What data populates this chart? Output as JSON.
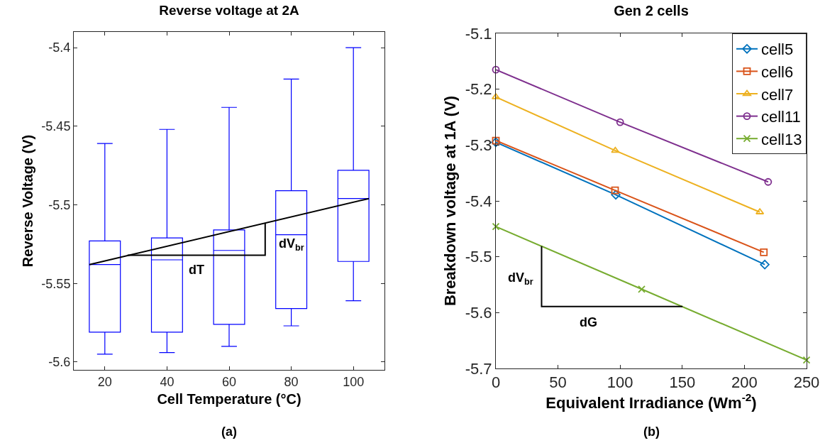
{
  "chart_data": [
    {
      "type": "box",
      "title": "Reverse voltage at 2A",
      "xlabel": "Cell Temperature (°C)",
      "ylabel": "Reverse Voltage (V)",
      "x": [
        20,
        40,
        60,
        80,
        100
      ],
      "xlim": [
        10,
        110
      ],
      "xticks": [
        20,
        40,
        60,
        80,
        100
      ],
      "ylim": [
        -5.605,
        -5.39
      ],
      "yticks": [
        -5.6,
        -5.55,
        -5.5,
        -5.45,
        -5.4
      ],
      "series": [
        {
          "type": "box",
          "color": "#0000ff",
          "boxes": [
            {
              "low": -5.595,
              "q1": -5.581,
              "median": -5.538,
              "q3": -5.523,
              "high": -5.461
            },
            {
              "low": -5.594,
              "q1": -5.581,
              "median": -5.535,
              "q3": -5.521,
              "high": -5.452
            },
            {
              "low": -5.59,
              "q1": -5.576,
              "median": -5.529,
              "q3": -5.516,
              "high": -5.438
            },
            {
              "low": -5.577,
              "q1": -5.566,
              "median": -5.519,
              "q3": -5.491,
              "high": -5.42
            },
            {
              "low": -5.561,
              "q1": -5.536,
              "median": -5.496,
              "q3": -5.478,
              "high": -5.4
            }
          ]
        },
        {
          "type": "line",
          "color": "#000000",
          "x": [
            15,
            105
          ],
          "values": [
            -5.538,
            -5.496
          ]
        },
        {
          "type": "line",
          "color": "#000000",
          "x": [
            27.3,
            71.6,
            71.6
          ],
          "values": [
            -5.532,
            -5.532,
            -5.512
          ]
        }
      ],
      "marker": "none",
      "line_style": "solid",
      "grid": false,
      "annotations": [
        "dT",
        "dV$_{br}$",
        "(a)"
      ]
    },
    {
      "type": "line",
      "title": "Gen 2 cells",
      "xlabel": "Equivalent Irradiance (Wm$^{-2}$)",
      "ylabel": "Breakdown voltage at 1A (V)",
      "xlim": [
        0,
        250
      ],
      "xticks": [
        0,
        50,
        100,
        150,
        200,
        250
      ],
      "ylim": [
        -5.7,
        -5.1
      ],
      "yticks": [
        -5.7,
        -5.6,
        -5.5,
        -5.4,
        -5.3,
        -5.2,
        -5.1
      ],
      "series": [
        {
          "name": "cell5",
          "color": "#0072bd",
          "marker": "diamond",
          "x": [
            0,
            96.5,
            216.4
          ],
          "values": [
            -5.295,
            -5.389,
            -5.514
          ]
        },
        {
          "name": "cell6",
          "color": "#d95319",
          "marker": "square",
          "x": [
            0,
            95.9,
            215.6
          ],
          "values": [
            -5.292,
            -5.381,
            -5.492
          ]
        },
        {
          "name": "cell7",
          "color": "#edb120",
          "marker": "triangle",
          "x": [
            0,
            96.1,
            212.4
          ],
          "values": [
            -5.214,
            -5.31,
            -5.42
          ]
        },
        {
          "name": "cell11",
          "color": "#7e2f8e",
          "marker": "circle",
          "x": [
            0,
            100,
            219.1
          ],
          "values": [
            -5.165,
            -5.259,
            -5.366
          ]
        },
        {
          "name": "cell13",
          "color": "#77ac30",
          "marker": "cross",
          "x": [
            0,
            117.3,
            250
          ],
          "values": [
            -5.446,
            -5.558,
            -5.685
          ]
        },
        {
          "color": "#000000",
          "marker": "none",
          "x": [
            36.8,
            36.8,
            150.2
          ],
          "values": [
            -5.481,
            -5.589,
            -5.589
          ]
        }
      ],
      "line_style": "solid",
      "grid": false,
      "legend": "top right",
      "annotations": [
        "dV$_{br}$",
        "dG",
        "(b)"
      ]
    }
  ]
}
